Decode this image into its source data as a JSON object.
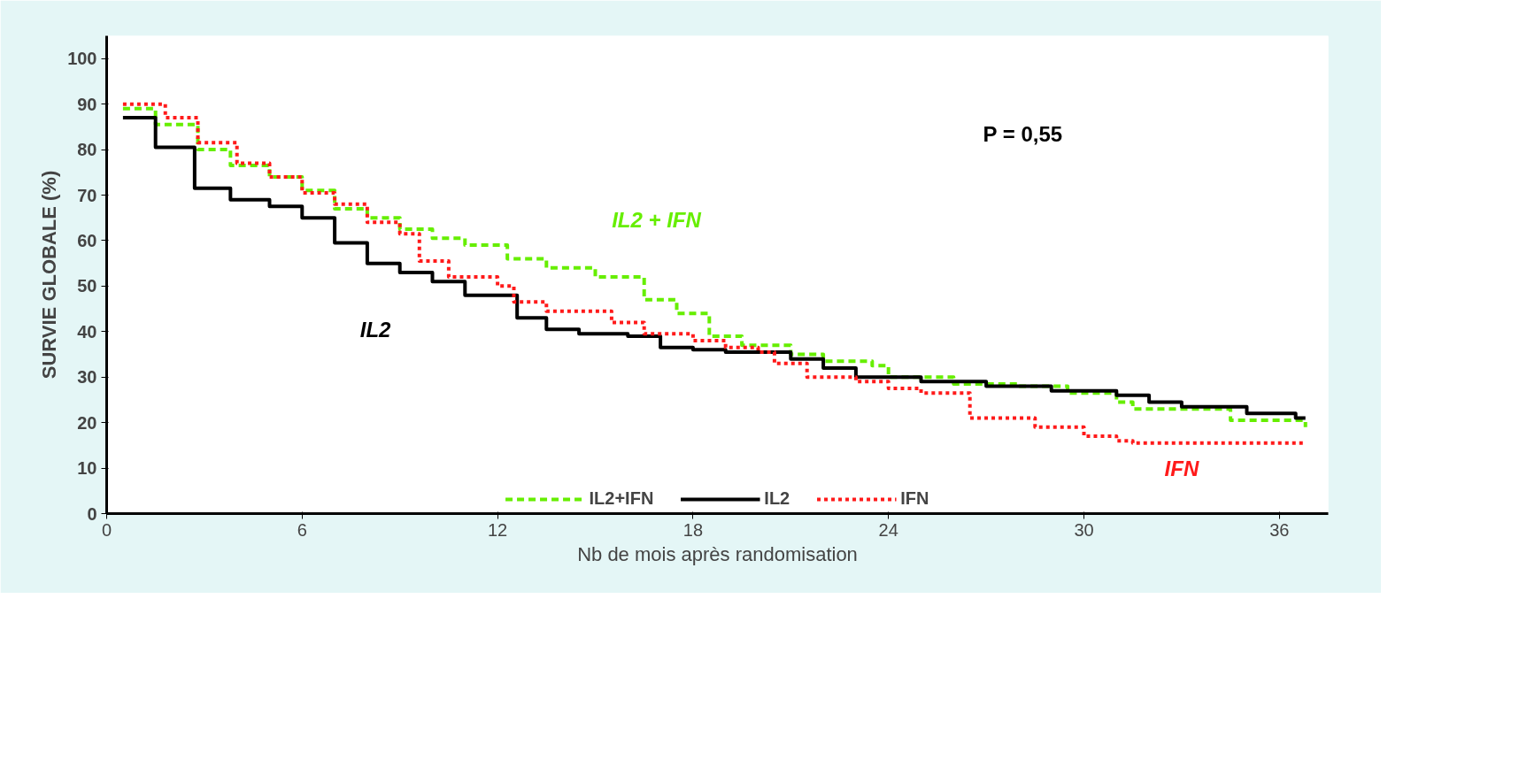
{
  "chart_data": {
    "type": "step",
    "xlabel": "Nb de mois après randomisation",
    "ylabel": "SURVIE GLOBALE (%)",
    "xlim": [
      0,
      37.5
    ],
    "ylim": [
      0,
      105
    ],
    "xticks": [
      0,
      6,
      12,
      18,
      24,
      30,
      36
    ],
    "yticks": [
      0,
      10,
      20,
      30,
      40,
      50,
      60,
      70,
      80,
      90,
      100
    ],
    "grid": false,
    "legend": "bottom",
    "marker": "none",
    "series": [
      {
        "name": "IL2+IFN",
        "color": "#66ee00",
        "line_style": "dashed",
        "x": [
          0.5,
          1.5,
          2.8,
          3.8,
          5,
          6,
          7,
          8,
          9,
          10,
          11,
          12.3,
          13.5,
          15,
          16.5,
          17.5,
          18.5,
          19.5,
          21,
          22,
          23.5,
          24,
          26,
          28,
          29.5,
          31,
          31.5,
          34.5,
          36.8
        ],
        "values": [
          89,
          85.5,
          80,
          76.5,
          74,
          71,
          67,
          65,
          62.5,
          60.5,
          59,
          56,
          54,
          52,
          47,
          44,
          39,
          37,
          35,
          33.5,
          32.5,
          30,
          28.5,
          28,
          26.5,
          24.5,
          23,
          20.5,
          19
        ]
      },
      {
        "name": "IL2",
        "color": "#000000",
        "line_style": "solid",
        "x": [
          0.5,
          1.5,
          2.7,
          3.8,
          5,
          6,
          7,
          8,
          9,
          10,
          11,
          12.6,
          13.5,
          14.5,
          16,
          17,
          18,
          19,
          21,
          22,
          23,
          25,
          27,
          29,
          31,
          32,
          33,
          35,
          36.5,
          36.8
        ],
        "values": [
          87,
          80.5,
          71.5,
          69,
          67.5,
          65,
          59.5,
          55,
          53,
          51,
          48,
          43,
          40.5,
          39.5,
          39,
          36.5,
          36,
          35.5,
          34,
          32,
          30,
          29,
          28,
          27,
          26,
          24.5,
          23.5,
          22,
          21,
          21
        ]
      },
      {
        "name": "IFN",
        "color": "#ff1a1a",
        "line_style": "dotted",
        "x": [
          0.5,
          1.8,
          2.8,
          4,
          5,
          6,
          7,
          8,
          9,
          9.6,
          10.5,
          12,
          12.5,
          13.5,
          15.5,
          16.5,
          18,
          19,
          20,
          20.5,
          21.5,
          23,
          24,
          25,
          26.5,
          28.5,
          30,
          31,
          31.5,
          36.8
        ],
        "values": [
          90,
          87,
          81.5,
          77,
          74,
          70.5,
          68,
          64,
          61.5,
          55.5,
          52,
          50,
          46.5,
          44.5,
          42,
          39.5,
          38,
          36.5,
          35.5,
          33,
          30,
          29,
          27.5,
          26.5,
          21,
          19,
          17,
          16,
          15.5,
          15.5
        ]
      }
    ],
    "annotations": [
      "IL2 + IFN",
      "IL2",
      "IFN",
      "P = 0,55"
    ]
  }
}
